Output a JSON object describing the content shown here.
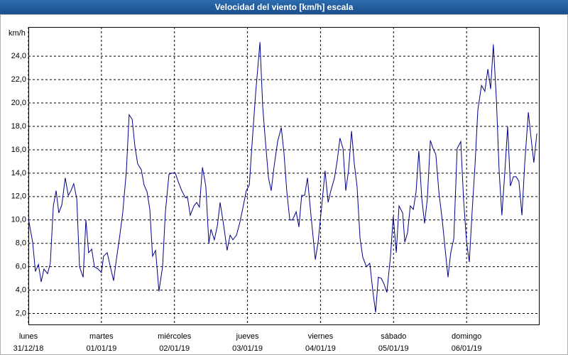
{
  "chart_data": {
    "type": "line",
    "title": "Velocidad del viento [km/h] escala",
    "y_label": "km/h",
    "xlim": [
      0,
      168
    ],
    "ylim": [
      1,
      26.5
    ],
    "xticks": [
      {
        "value": 0,
        "label": "lunes",
        "date": "31/12/18"
      },
      {
        "value": 24,
        "label": "martes",
        "date": "01/01/19"
      },
      {
        "value": 48,
        "label": "miércoles",
        "date": "02/01/19"
      },
      {
        "value": 72,
        "label": "jueves",
        "date": "03/01/19"
      },
      {
        "value": 96,
        "label": "viernes",
        "date": "04/01/19"
      },
      {
        "value": 120,
        "label": "sábado",
        "date": "05/01/19"
      },
      {
        "value": 144,
        "label": "domingo",
        "date": "06/01/19"
      }
    ],
    "yticks": [
      {
        "value": 2,
        "label": "2,0"
      },
      {
        "value": 4,
        "label": "4,0"
      },
      {
        "value": 6,
        "label": "6,0"
      },
      {
        "value": 8,
        "label": "8,0"
      },
      {
        "value": 10,
        "label": "10,0"
      },
      {
        "value": 12,
        "label": "12,0"
      },
      {
        "value": 14,
        "label": "14,0"
      },
      {
        "value": 16,
        "label": "16,0"
      },
      {
        "value": 18,
        "label": "18,0"
      },
      {
        "value": 20,
        "label": "20,0"
      },
      {
        "value": 22,
        "label": "22,0"
      },
      {
        "value": 24,
        "label": "24,0"
      }
    ],
    "grid": true,
    "series": [
      {
        "name": "Velocidad del viento",
        "color": "#00008b",
        "x": [
          0,
          1.4,
          2.3,
          3.3,
          4.2,
          5.1,
          6.3,
          7.2,
          8.2,
          9.1,
          10.0,
          11.0,
          12.1,
          13.1,
          14.0,
          14.9,
          15.9,
          16.8,
          18.0,
          18.9,
          19.8,
          20.8,
          21.7,
          22.9,
          24.0,
          24.7,
          25.9,
          27.1,
          28.0,
          28.9,
          29.9,
          31.0,
          32.2,
          33.1,
          34.1,
          35.0,
          35.9,
          37.1,
          38.0,
          39.0,
          39.9,
          40.8,
          41.8,
          42.9,
          44.1,
          45.0,
          46.2,
          47.1,
          48.3,
          49.2,
          50.4,
          51.6,
          52.3,
          53.2,
          54.4,
          55.3,
          56.2,
          57.2,
          58.3,
          59.3,
          60.0,
          61.1,
          62.1,
          63.0,
          64.2,
          65.3,
          66.3,
          67.2,
          68.4,
          69.5,
          70.7,
          71.6,
          72.6,
          73.5,
          74.7,
          76.1,
          77.0,
          77.9,
          78.9,
          79.8,
          80.7,
          81.9,
          83.1,
          84.0,
          84.9,
          85.9,
          86.8,
          88.0,
          88.9,
          89.8,
          90.8,
          91.7,
          92.9,
          94.3,
          95.2,
          96.4,
          97.5,
          98.5,
          99.4,
          100.6,
          101.5,
          102.4,
          103.4,
          104.3,
          105.2,
          106.2,
          107.1,
          108.0,
          109.0,
          109.9,
          111.1,
          112.2,
          113.2,
          114.1,
          115.0,
          116.0,
          116.9,
          117.8,
          119.0,
          119.9,
          120.9,
          121.8,
          123.0,
          123.7,
          124.6,
          125.5,
          126.5,
          127.4,
          128.3,
          129.3,
          130.2,
          131.1,
          132.1,
          133.0,
          133.9,
          134.9,
          136.0,
          137.0,
          137.9,
          138.8,
          139.8,
          140.9,
          142.1,
          143.0,
          144.0,
          144.9,
          145.8,
          146.8,
          147.7,
          148.9,
          150.0,
          151.0,
          151.9,
          152.8,
          153.8,
          154.7,
          155.6,
          156.6,
          157.5,
          158.4,
          159.4,
          160.3,
          161.2,
          162.2,
          163.1,
          164.3,
          165.2,
          166.1,
          167.1
        ],
        "values": [
          10.1,
          8.1,
          5.6,
          6.2,
          4.7,
          5.8,
          5.4,
          6.3,
          11.2,
          12.5,
          10.6,
          11.3,
          13.6,
          12.1,
          12.5,
          13.1,
          11.8,
          6.0,
          5.1,
          10.0,
          7.2,
          7.5,
          6.0,
          5.8,
          5.5,
          6.9,
          7.2,
          5.8,
          4.8,
          6.6,
          8.4,
          10.6,
          14.2,
          19.0,
          18.6,
          16.3,
          14.8,
          14.3,
          13.0,
          12.4,
          10.9,
          6.9,
          7.4,
          3.9,
          6.0,
          10.6,
          13.9,
          14.0,
          14.0,
          13.3,
          12.5,
          11.9,
          11.9,
          10.4,
          11.2,
          11.5,
          11.1,
          14.5,
          12.9,
          8.0,
          9.2,
          8.3,
          9.5,
          11.5,
          9.5,
          7.4,
          8.7,
          8.3,
          8.7,
          9.8,
          11.3,
          12.5,
          13.0,
          16.5,
          20.9,
          25.2,
          19.7,
          16.7,
          13.6,
          12.5,
          14.5,
          16.7,
          17.9,
          15.7,
          12.5,
          10.0,
          10.0,
          10.7,
          9.4,
          12.1,
          12.1,
          13.6,
          10.3,
          6.6,
          8.1,
          11.2,
          14.2,
          11.5,
          12.5,
          13.6,
          15.1,
          17.0,
          16.1,
          12.5,
          14.2,
          17.6,
          14.8,
          12.9,
          8.4,
          6.8,
          6.0,
          6.3,
          3.9,
          2.1,
          5.1,
          5.0,
          4.5,
          3.8,
          6.9,
          10.3,
          7.2,
          11.2,
          10.6,
          8.1,
          8.9,
          11.2,
          10.9,
          12.4,
          15.9,
          11.8,
          9.7,
          11.8,
          16.8,
          16.1,
          15.6,
          12.4,
          10.0,
          7.4,
          5.1,
          7.2,
          8.4,
          16.1,
          16.7,
          11.8,
          8.1,
          6.4,
          10.6,
          14.8,
          19.4,
          21.5,
          21.0,
          22.9,
          21.2,
          25.0,
          20.3,
          14.2,
          10.4,
          14.2,
          18.0,
          12.9,
          13.7,
          13.7,
          13.3,
          10.4,
          14.8,
          19.2,
          17.0,
          14.9,
          17.4
        ]
      }
    ]
  }
}
